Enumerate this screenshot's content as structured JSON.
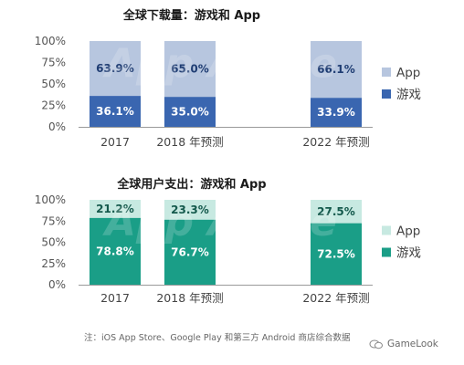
{
  "chart_data": [
    {
      "type": "bar",
      "stacked": true,
      "title": "全球下载量：游戏和 App",
      "categories": [
        "2017",
        "2018 年预测",
        "2022 年预测"
      ],
      "y_ticks": [
        "100%",
        "75%",
        "50%",
        "25%",
        "0%"
      ],
      "ylim": [
        0,
        100
      ],
      "series": [
        {
          "name": "游戏",
          "values": [
            36.1,
            35.0,
            33.9
          ],
          "labels": [
            "36.1%",
            "35.0%",
            "33.9%"
          ],
          "color": "#3a66b0",
          "label_color": "#ffffff"
        },
        {
          "name": "App",
          "values": [
            63.9,
            65.0,
            66.1
          ],
          "labels": [
            "63.9%",
            "65.0%",
            "66.1%"
          ],
          "color": "#b7c6df",
          "label_color": "#1f3d73"
        }
      ],
      "legend": [
        "App",
        "游戏"
      ],
      "legend_position": "right",
      "watermark": "App Annie"
    },
    {
      "type": "bar",
      "stacked": true,
      "title": "全球用户支出：游戏和 App",
      "categories": [
        "2017",
        "2018 年预测",
        "2022 年预测"
      ],
      "y_ticks": [
        "100%",
        "75%",
        "50%",
        "25%",
        "0%"
      ],
      "ylim": [
        0,
        100
      ],
      "series": [
        {
          "name": "游戏",
          "values": [
            78.8,
            76.7,
            72.5
          ],
          "labels": [
            "78.8%",
            "76.7%",
            "72.5%"
          ],
          "color": "#1a9e87",
          "label_color": "#ffffff"
        },
        {
          "name": "App",
          "values": [
            21.2,
            23.3,
            27.5
          ],
          "labels": [
            "21.2%",
            "23.3%",
            "27.5%"
          ],
          "color": "#c7e9e1",
          "label_color": "#14594c"
        }
      ],
      "legend": [
        "App",
        "游戏"
      ],
      "legend_position": "right",
      "watermark": "App Annie"
    }
  ],
  "footnote": "注：iOS App Store、Google Play 和第三方 Android 商店综合数据",
  "brand": "GameLook",
  "colors": {
    "axis": "#9a9a9a",
    "legend_app_top": "#b7c6df",
    "legend_game_top": "#3a66b0",
    "legend_app_bottom": "#c7e9e1",
    "legend_game_bottom": "#1a9e87"
  }
}
